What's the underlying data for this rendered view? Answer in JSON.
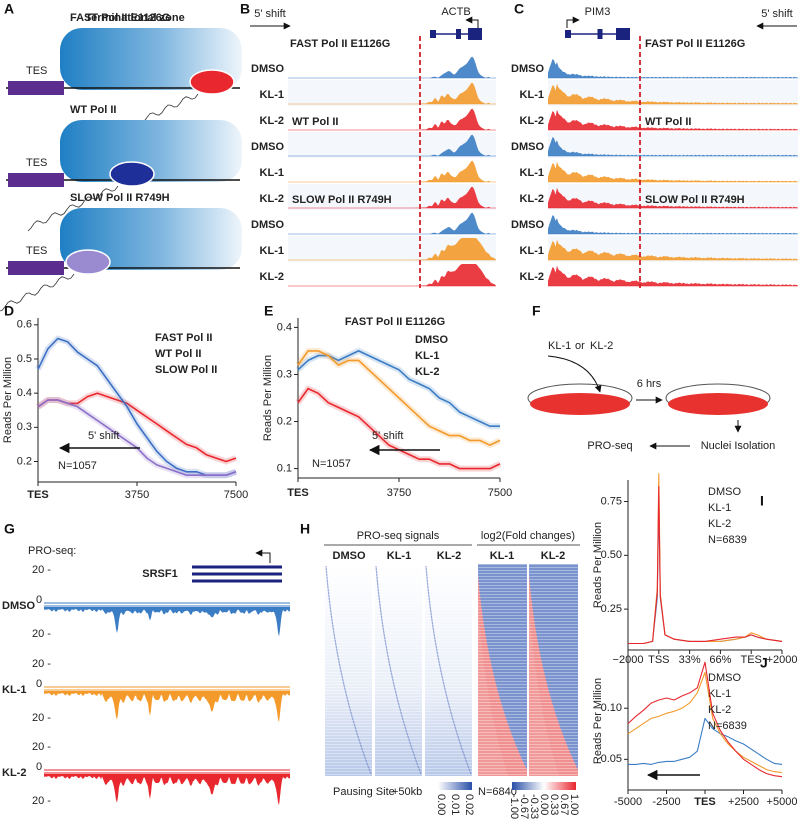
{
  "panel_letters": [
    "A",
    "B",
    "C",
    "D",
    "E",
    "F",
    "G",
    "H",
    "I",
    "J"
  ],
  "panel_a": {
    "title": "Terminational zone",
    "diagrams": [
      {
        "label": "FAST Pol II E1126G",
        "site": "TES",
        "color": "#e8272f"
      },
      {
        "label": "WT Pol II",
        "site": "TES",
        "color": "#3b6fc4"
      },
      {
        "label": "SLOW Pol II R749H",
        "site": "TES",
        "color": "#8b78c0"
      }
    ]
  },
  "panel_b": {
    "shift": "5' shift",
    "gene": "ACTB",
    "groups": [
      {
        "label": "FAST Pol II E1126G",
        "color": "#e8272f"
      },
      {
        "label": "WT Pol II",
        "color": "#3b6fc4"
      },
      {
        "label": "SLOW Pol II R749H",
        "color": "#8b78c0"
      }
    ],
    "rows": [
      {
        "label": "DMSO",
        "color": "#3b7dc4"
      },
      {
        "label": "KL-1",
        "color": "#f39a2b"
      },
      {
        "label": "KL-2",
        "color": "#e8272f"
      },
      {
        "label": "DMSO",
        "color": "#3b7dc4"
      },
      {
        "label": "KL-1",
        "color": "#f39a2b"
      },
      {
        "label": "KL-2",
        "color": "#e8272f"
      },
      {
        "label": "DMSO",
        "color": "#3b7dc4"
      },
      {
        "label": "KL-1",
        "color": "#f39a2b"
      },
      {
        "label": "KL-2",
        "color": "#e8272f"
      }
    ]
  },
  "panel_c": {
    "shift": "5' shift",
    "gene": "PIM3",
    "groups": [
      {
        "label": "FAST Pol II E1126G",
        "color": "#e8272f"
      },
      {
        "label": "WT Pol II",
        "color": "#3b6fc4"
      },
      {
        "label": "SLOW Pol II R749H",
        "color": "#8b78c0"
      }
    ],
    "rows": [
      {
        "label": "DMSO",
        "color": "#3b7dc4"
      },
      {
        "label": "KL-1",
        "color": "#f39a2b"
      },
      {
        "label": "KL-2",
        "color": "#e8272f"
      },
      {
        "label": "DMSO",
        "color": "#3b7dc4"
      },
      {
        "label": "KL-1",
        "color": "#f39a2b"
      },
      {
        "label": "KL-2",
        "color": "#e8272f"
      },
      {
        "label": "DMSO",
        "color": "#3b7dc4"
      },
      {
        "label": "KL-1",
        "color": "#f39a2b"
      },
      {
        "label": "KL-2",
        "color": "#e8272f"
      }
    ]
  },
  "panel_f": {
    "treatment_1": "KL-1",
    "or": "or",
    "treatment_2": "KL-2",
    "time": "6 hrs",
    "step": "Nuclei Isolation",
    "assay": "PRO-seq"
  },
  "panel_g": {
    "title": "PRO-seq:",
    "gene": "SRSF1",
    "tracks": [
      {
        "label": "DMSO",
        "color": "#3b7dc4",
        "scale_top": "20 -",
        "zero": "0",
        "scale_bottom": "20 -"
      },
      {
        "label": "KL-1",
        "color": "#f39a2b",
        "scale_top": "20 -",
        "zero": "0",
        "scale_bottom": "20 -"
      },
      {
        "label": "KL-2",
        "color": "#e8272f",
        "scale_top": "20 -",
        "zero": "0",
        "scale_bottom": "20 -"
      }
    ]
  },
  "panel_h": {
    "signals_title": "PRO-seq signals",
    "fold_title": "log2(Fold changes)",
    "signal_columns": [
      {
        "label": "DMSO",
        "color": "#3b7dc4"
      },
      {
        "label": "KL-1",
        "color": "#f39a2b"
      },
      {
        "label": "KL-2",
        "color": "#e8272f"
      }
    ],
    "fold_columns": [
      {
        "label": "KL-1",
        "color": "#f39a2b"
      },
      {
        "label": "KL-2",
        "color": "#e8272f"
      }
    ],
    "start_label": "Pausing Site",
    "end_label": "+50kb",
    "count": "N=6840",
    "colorbar_signal": [
      "0.00",
      "0.01",
      "0.02"
    ],
    "colorbar_fold": [
      "-1.00",
      "-0.67",
      "-0.33",
      "0.00",
      "0.33",
      "0.67",
      "1.00"
    ]
  },
  "chart_data": [
    {
      "type": "line",
      "ylabel": "Reads Per Million",
      "xlim": [
        0,
        7500
      ],
      "ylim": [
        0.14,
        0.62
      ],
      "xticks": [
        {
          "value": 0,
          "label": "TES"
        },
        3750,
        7500
      ],
      "yticks": [
        0.2,
        0.3,
        0.4,
        0.5,
        0.6
      ],
      "annotations": [
        "N=1057",
        "5' shift"
      ],
      "x": [
        0,
        375,
        750,
        1125,
        1500,
        1875,
        2250,
        2625,
        3000,
        3375,
        3750,
        4125,
        4500,
        4875,
        5250,
        5625,
        6000,
        6375,
        6750,
        7125,
        7500
      ],
      "series": [
        {
          "name": "FAST Pol II",
          "color": "#e8272f",
          "values": [
            0.36,
            0.38,
            0.38,
            0.37,
            0.37,
            0.39,
            0.4,
            0.39,
            0.38,
            0.37,
            0.35,
            0.33,
            0.31,
            0.29,
            0.27,
            0.25,
            0.24,
            0.22,
            0.21,
            0.2,
            0.21
          ]
        },
        {
          "name": "WT Pol II",
          "color": "#3b6fc4",
          "values": [
            0.47,
            0.53,
            0.56,
            0.55,
            0.52,
            0.5,
            0.48,
            0.44,
            0.4,
            0.36,
            0.31,
            0.27,
            0.23,
            0.2,
            0.18,
            0.17,
            0.17,
            0.16,
            0.16,
            0.16,
            0.17
          ]
        },
        {
          "name": "SLOW Pol II",
          "color": "#8b6fc9",
          "values": [
            0.36,
            0.38,
            0.38,
            0.37,
            0.36,
            0.34,
            0.32,
            0.3,
            0.28,
            0.26,
            0.24,
            0.21,
            0.19,
            0.18,
            0.17,
            0.16,
            0.16,
            0.16,
            0.16,
            0.16,
            0.17
          ]
        }
      ]
    },
    {
      "type": "line",
      "title": "FAST Pol II E1126G",
      "ylabel": "Reads Per Million",
      "xlim": [
        0,
        7500
      ],
      "ylim": [
        0.08,
        0.42
      ],
      "xticks": [
        {
          "value": 0,
          "label": "TES"
        },
        3750,
        7500
      ],
      "yticks": [
        0.1,
        0.2,
        0.3,
        0.4
      ],
      "annotations": [
        "N=1057",
        "5' shift"
      ],
      "x": [
        0,
        375,
        750,
        1125,
        1500,
        1875,
        2250,
        2625,
        3000,
        3375,
        3750,
        4125,
        4500,
        4875,
        5250,
        5625,
        6000,
        6375,
        6750,
        7125,
        7500
      ],
      "series": [
        {
          "name": "DMSO",
          "color": "#3b7dc4",
          "values": [
            0.31,
            0.33,
            0.34,
            0.34,
            0.33,
            0.34,
            0.35,
            0.34,
            0.33,
            0.32,
            0.31,
            0.29,
            0.28,
            0.27,
            0.25,
            0.24,
            0.22,
            0.21,
            0.2,
            0.19,
            0.19
          ]
        },
        {
          "name": "KL-1",
          "color": "#f39a2b",
          "values": [
            0.32,
            0.35,
            0.35,
            0.34,
            0.32,
            0.33,
            0.33,
            0.31,
            0.29,
            0.27,
            0.25,
            0.23,
            0.21,
            0.19,
            0.18,
            0.17,
            0.17,
            0.16,
            0.16,
            0.15,
            0.16
          ]
        },
        {
          "name": "KL-2",
          "color": "#e8272f",
          "values": [
            0.24,
            0.27,
            0.26,
            0.24,
            0.23,
            0.22,
            0.21,
            0.19,
            0.17,
            0.15,
            0.14,
            0.13,
            0.12,
            0.12,
            0.11,
            0.11,
            0.1,
            0.1,
            0.1,
            0.1,
            0.11
          ]
        }
      ]
    },
    {
      "type": "line",
      "ylabel": "Reads Per Million",
      "xlim": [
        0,
        5
      ],
      "ylim": [
        0.06,
        0.85
      ],
      "xticks": [
        {
          "value": 0,
          "label": "−2000"
        },
        {
          "value": 1,
          "label": "TSS"
        },
        {
          "value": 2,
          "label": "33%"
        },
        {
          "value": 3,
          "label": "66%"
        },
        {
          "value": 4,
          "label": "TES"
        },
        {
          "value": 5,
          "label": "+2000"
        }
      ],
      "yticks": [
        0.25,
        {
          "value": 0.5,
          "label": "0.50"
        },
        0.75
      ],
      "annotations": [
        "N=6839"
      ],
      "x": [
        0,
        0.5,
        0.8,
        0.95,
        1,
        1.05,
        1.2,
        1.5,
        2,
        2.5,
        3,
        3.5,
        3.8,
        4,
        4.2,
        4.5,
        5
      ],
      "series": [
        {
          "name": "DMSO",
          "color": "#5b8fd0",
          "values": [
            0.09,
            0.09,
            0.1,
            0.3,
            0.75,
            0.3,
            0.13,
            0.11,
            0.1,
            0.1,
            0.1,
            0.11,
            0.12,
            0.13,
            0.12,
            0.11,
            0.1
          ]
        },
        {
          "name": "KL-1",
          "color": "#f39a2b",
          "values": [
            0.09,
            0.09,
            0.1,
            0.35,
            0.88,
            0.32,
            0.13,
            0.11,
            0.1,
            0.1,
            0.1,
            0.11,
            0.12,
            0.14,
            0.13,
            0.11,
            0.1
          ]
        },
        {
          "name": "KL-2",
          "color": "#e8272f",
          "values": [
            0.09,
            0.09,
            0.1,
            0.33,
            0.82,
            0.31,
            0.13,
            0.11,
            0.1,
            0.1,
            0.11,
            0.12,
            0.12,
            0.13,
            0.12,
            0.11,
            0.1
          ]
        }
      ]
    },
    {
      "type": "line",
      "ylabel": "Reads Per Million",
      "xlim": [
        -5000,
        5000
      ],
      "ylim": [
        0.02,
        0.155
      ],
      "xticks": [
        -5000,
        -2500,
        {
          "value": 0,
          "label": "TES"
        },
        {
          "value": 2500,
          "label": "+2500"
        },
        {
          "value": 5000,
          "label": "+5000"
        }
      ],
      "yticks": [
        0.05,
        {
          "value": 0.1,
          "label": "0.10"
        }
      ],
      "annotations": [
        "N=6839"
      ],
      "x": [
        -5000,
        -4500,
        -4000,
        -3500,
        -3000,
        -2500,
        -2000,
        -1500,
        -1000,
        -500,
        0,
        500,
        1000,
        1500,
        2000,
        2500,
        3000,
        3500,
        4000,
        4500,
        5000
      ],
      "series": [
        {
          "name": "DMSO",
          "color": "#3b7dc4",
          "values": [
            0.045,
            0.045,
            0.046,
            0.045,
            0.047,
            0.048,
            0.048,
            0.05,
            0.052,
            0.058,
            0.09,
            0.08,
            0.075,
            0.072,
            0.068,
            0.065,
            0.06,
            0.055,
            0.05,
            0.046,
            0.045
          ]
        },
        {
          "name": "KL-1",
          "color": "#f39a2b",
          "values": [
            0.075,
            0.08,
            0.085,
            0.09,
            0.092,
            0.095,
            0.097,
            0.1,
            0.105,
            0.115,
            0.135,
            0.09,
            0.075,
            0.065,
            0.058,
            0.052,
            0.048,
            0.044,
            0.04,
            0.038,
            0.037
          ]
        },
        {
          "name": "KL-2",
          "color": "#e8272f",
          "values": [
            0.085,
            0.092,
            0.098,
            0.105,
            0.108,
            0.11,
            0.108,
            0.112,
            0.115,
            0.12,
            0.145,
            0.095,
            0.078,
            0.067,
            0.058,
            0.05,
            0.045,
            0.04,
            0.036,
            0.034,
            0.033
          ]
        }
      ]
    }
  ]
}
